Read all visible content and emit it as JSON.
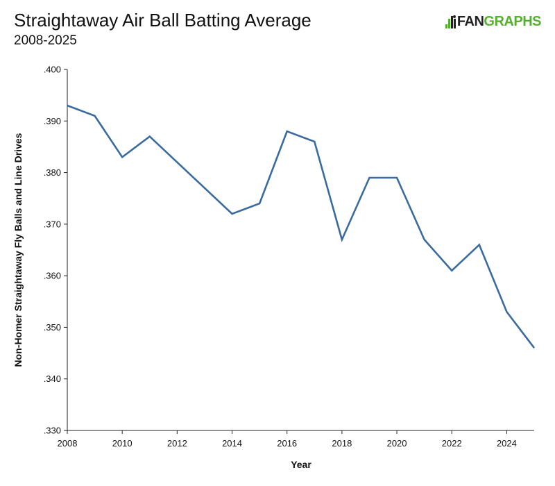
{
  "header": {
    "title": "Straightaway Air Ball Batting Average",
    "subtitle": "2008-2025"
  },
  "logo": {
    "text_left": "FAN",
    "text_right": "GRAPHS",
    "icon": "fangraphs-batter-icon",
    "color_dark": "#222222",
    "color_green": "#56b030"
  },
  "chart_data": {
    "type": "line",
    "title": "Straightaway Air Ball Batting Average",
    "subtitle": "2008-2025",
    "xlabel": "Year",
    "ylabel": "Non-Homer Straightaway Fly Balls and Line Drives",
    "xlim": [
      2008,
      2025
    ],
    "ylim": [
      0.33,
      0.4
    ],
    "x_ticks": [
      2008,
      2010,
      2012,
      2014,
      2016,
      2018,
      2020,
      2022,
      2024
    ],
    "y_ticks": [
      0.33,
      0.34,
      0.35,
      0.36,
      0.37,
      0.38,
      0.39,
      0.4
    ],
    "y_tick_labels": [
      ".330",
      ".340",
      ".350",
      ".360",
      ".370",
      ".380",
      ".390",
      ".400"
    ],
    "grid": false,
    "line_color": "#3a6b9e",
    "series": [
      {
        "x": [
          2008,
          2009,
          2010,
          2011,
          2012,
          2013,
          2014,
          2015,
          2016,
          2017,
          2018,
          2019,
          2020,
          2021,
          2022,
          2023,
          2024,
          2025
        ],
        "values": [
          0.393,
          0.391,
          0.383,
          0.387,
          0.382,
          0.377,
          0.372,
          0.374,
          0.388,
          0.386,
          0.367,
          0.379,
          0.379,
          0.367,
          0.361,
          0.366,
          0.353,
          0.346
        ]
      }
    ]
  }
}
